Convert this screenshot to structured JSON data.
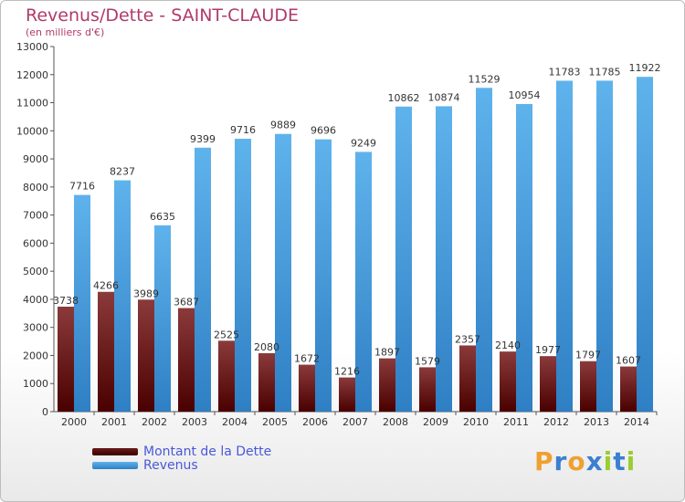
{
  "chart_data": {
    "type": "bar",
    "title": "Revenus/Dette - SAINT-CLAUDE",
    "subtitle": "(en milliers d'€)",
    "categories": [
      "2000",
      "2001",
      "2002",
      "2003",
      "2004",
      "2005",
      "2006",
      "2007",
      "2008",
      "2009",
      "2010",
      "2011",
      "2012",
      "2013",
      "2014"
    ],
    "series": [
      {
        "name": "Montant de la Dette",
        "values": [
          3738,
          4266,
          3989,
          3687,
          2525,
          2080,
          1672,
          1216,
          1897,
          1579,
          2357,
          2140,
          1977,
          1797,
          1607
        ],
        "labels": [
          "3738",
          "4266",
          "3989",
          "3687",
          "2525",
          "2080",
          "1672",
          "1216",
          "1897",
          "1579",
          "2357",
          "2140",
          "1977",
          "1797",
          "1607"
        ]
      },
      {
        "name": "Revenus",
        "values": [
          7716,
          8237,
          6635,
          9399,
          9716,
          9889,
          9696,
          9249,
          10862,
          10874,
          11529,
          10954,
          11783,
          11785,
          11922
        ],
        "labels": [
          "7716",
          "8237",
          "6635",
          "9399",
          "9716",
          "9889",
          "9696",
          "9249",
          "10862",
          "10874",
          "11529",
          "10954",
          "11783",
          "11785",
          "11922"
        ]
      }
    ],
    "ylim": [
      0,
      13000
    ],
    "yticks": [
      0,
      1000,
      2000,
      3000,
      4000,
      5000,
      6000,
      7000,
      8000,
      9000,
      10000,
      11000,
      12000,
      13000
    ],
    "grid": false,
    "legend_position": "bottom-left",
    "colors": {
      "dette_top": "#8b3a3a",
      "dette_bottom": "#4a0000",
      "revenus_top": "#58aee8",
      "revenus_bottom": "#2f7fc4",
      "title": "#b03a6a",
      "legend_text": "#4a58d8"
    }
  },
  "logo": {
    "letters": [
      "P",
      "r",
      "o",
      "x",
      "i",
      "t",
      "i"
    ],
    "colors": [
      "#f0a030",
      "#3a7fd0",
      "#f0a030",
      "#3a7fd0",
      "#9acd32",
      "#3a7fd0",
      "#9acd32"
    ]
  }
}
